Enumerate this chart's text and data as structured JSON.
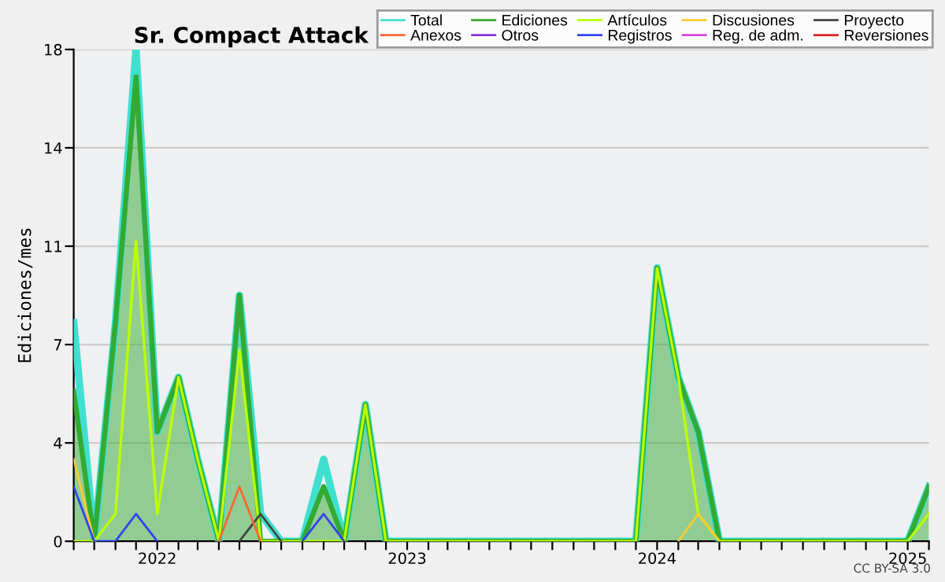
{
  "chart_data": {
    "type": "line",
    "title": "Sr. Compact Attack",
    "ylabel": "Ediciones/mes",
    "annotations": [
      "CC BY-SA 3.0"
    ],
    "x": [
      "2021-09",
      "2021-10",
      "2021-11",
      "2021-12",
      "2022-01",
      "2022-02",
      "2022-03",
      "2022-04",
      "2022-05",
      "2022-06",
      "2022-07",
      "2022-08",
      "2022-09",
      "2022-10",
      "2022-11",
      "2022-12",
      "2023-01",
      "2023-02",
      "2023-03",
      "2023-04",
      "2023-05",
      "2023-06",
      "2023-07",
      "2023-08",
      "2023-09",
      "2023-10",
      "2023-11",
      "2023-12",
      "2024-01",
      "2024-02",
      "2024-03",
      "2024-04",
      "2024-05",
      "2024-06",
      "2024-07",
      "2024-08",
      "2024-09",
      "2024-10",
      "2024-11",
      "2024-12",
      "2025-01",
      "2025-02"
    ],
    "xlim": [
      "2021-09",
      "2025-02"
    ],
    "xticks": [
      {
        "value": "2021-09",
        "label": null
      },
      {
        "value": "2021-10",
        "label": null
      },
      {
        "value": "2021-11",
        "label": null
      },
      {
        "value": "2021-12",
        "label": null
      },
      {
        "value": "2022-01",
        "label": "2022"
      },
      {
        "value": "2022-02",
        "label": null
      },
      {
        "value": "2022-03",
        "label": null
      },
      {
        "value": "2022-04",
        "label": null
      },
      {
        "value": "2022-05",
        "label": null
      },
      {
        "value": "2022-06",
        "label": null
      },
      {
        "value": "2022-07",
        "label": null
      },
      {
        "value": "2022-08",
        "label": null
      },
      {
        "value": "2022-09",
        "label": null
      },
      {
        "value": "2022-10",
        "label": null
      },
      {
        "value": "2022-11",
        "label": null
      },
      {
        "value": "2022-12",
        "label": null
      },
      {
        "value": "2023-01",
        "label": "2023"
      },
      {
        "value": "2023-02",
        "label": null
      },
      {
        "value": "2023-03",
        "label": null
      },
      {
        "value": "2023-04",
        "label": null
      },
      {
        "value": "2023-05",
        "label": null
      },
      {
        "value": "2023-06",
        "label": null
      },
      {
        "value": "2023-07",
        "label": null
      },
      {
        "value": "2023-08",
        "label": null
      },
      {
        "value": "2023-09",
        "label": null
      },
      {
        "value": "2023-10",
        "label": null
      },
      {
        "value": "2023-11",
        "label": null
      },
      {
        "value": "2023-12",
        "label": null
      },
      {
        "value": "2024-01",
        "label": "2024"
      },
      {
        "value": "2024-02",
        "label": null
      },
      {
        "value": "2024-03",
        "label": null
      },
      {
        "value": "2024-04",
        "label": null
      },
      {
        "value": "2024-05",
        "label": null
      },
      {
        "value": "2024-06",
        "label": null
      },
      {
        "value": "2024-07",
        "label": null
      },
      {
        "value": "2024-08",
        "label": null
      },
      {
        "value": "2024-09",
        "label": null
      },
      {
        "value": "2024-10",
        "label": null
      },
      {
        "value": "2024-11",
        "label": null
      },
      {
        "value": "2024-12",
        "label": null
      },
      {
        "value": "2025-01",
        "label": "2025"
      },
      {
        "value": "2025-02",
        "label": null
      }
    ],
    "ylim": [
      0,
      18
    ],
    "yticks": [
      0,
      {
        "value": 3.6,
        "label": "4"
      },
      {
        "value": 7.2,
        "label": "7"
      },
      {
        "value": 10.8,
        "label": "11"
      },
      {
        "value": 14.4,
        "label": "14"
      },
      18
    ],
    "grid": "y",
    "legend": "top right",
    "series": [
      {
        "name": "Total",
        "color": "#40e0d0",
        "values": [
          8,
          0,
          8,
          18,
          4,
          6,
          3,
          0,
          9,
          1,
          0,
          0,
          3,
          0,
          5,
          0,
          0,
          0,
          0,
          0,
          0,
          0,
          0,
          0,
          0,
          0,
          0,
          0,
          10,
          6,
          4,
          0,
          0,
          0,
          0,
          0,
          0,
          0,
          0,
          0,
          0,
          2
        ]
      },
      {
        "name": "Ediciones",
        "type": "area",
        "color": "#33aa33",
        "values": [
          5.5,
          0,
          8,
          17,
          4,
          6,
          3,
          0,
          9,
          0,
          0,
          0,
          2,
          0,
          5,
          0,
          0,
          0,
          0,
          0,
          0,
          0,
          0,
          0,
          0,
          0,
          0,
          0,
          10,
          6,
          4,
          0,
          0,
          0,
          0,
          0,
          0,
          0,
          0,
          0,
          0,
          2
        ]
      },
      {
        "name": "Artículos",
        "color": "#bbff00",
        "values": [
          0,
          0,
          1,
          11,
          1,
          6,
          3,
          0,
          7,
          0,
          0,
          0,
          0,
          0,
          5,
          0,
          0,
          0,
          0,
          0,
          0,
          0,
          0,
          0,
          0,
          0,
          0,
          0,
          10,
          6,
          1,
          0,
          0,
          0,
          0,
          0,
          0,
          0,
          0,
          0,
          0,
          1
        ]
      },
      {
        "name": "Discusiones",
        "color": "#ffcc33",
        "values": [
          3,
          0,
          null,
          null,
          null,
          null,
          null,
          null,
          null,
          null,
          null,
          null,
          null,
          null,
          null,
          null,
          null,
          null,
          null,
          null,
          null,
          null,
          null,
          null,
          null,
          null,
          null,
          null,
          null,
          0,
          1,
          0,
          null,
          null,
          null,
          null,
          null,
          null,
          null,
          null,
          null,
          null
        ]
      },
      {
        "name": "Proyecto",
        "color": "#444444",
        "values": [
          null,
          null,
          null,
          null,
          null,
          null,
          null,
          null,
          0,
          1,
          0,
          null,
          null,
          null,
          null,
          null,
          null,
          null,
          null,
          null,
          null,
          null,
          null,
          null,
          null,
          null,
          null,
          null,
          null,
          null,
          null,
          null,
          null,
          null,
          null,
          null,
          null,
          null,
          null,
          null,
          null,
          null
        ]
      },
      {
        "name": "Anexos",
        "color": "#ff6633",
        "values": [
          null,
          null,
          null,
          null,
          null,
          null,
          null,
          0,
          2,
          0,
          null,
          null,
          null,
          null,
          null,
          null,
          null,
          null,
          null,
          null,
          null,
          null,
          null,
          null,
          null,
          null,
          null,
          null,
          null,
          null,
          null,
          null,
          null,
          null,
          null,
          null,
          null,
          null,
          null,
          null,
          null,
          null
        ]
      },
      {
        "name": "Otros",
        "color": "#8833dd",
        "values": [
          null,
          null,
          null,
          null,
          null,
          null,
          null,
          null,
          null,
          null,
          null,
          null,
          null,
          null,
          null,
          null,
          null,
          null,
          null,
          null,
          null,
          null,
          null,
          null,
          null,
          null,
          null,
          null,
          null,
          null,
          null,
          null,
          null,
          null,
          null,
          null,
          null,
          null,
          null,
          null,
          null,
          null
        ]
      },
      {
        "name": "Registros",
        "color": "#3344ee",
        "values": [
          2,
          0,
          0,
          1,
          0,
          null,
          null,
          null,
          null,
          null,
          null,
          0,
          1,
          0,
          null,
          null,
          null,
          null,
          null,
          null,
          null,
          null,
          null,
          null,
          null,
          null,
          null,
          null,
          null,
          null,
          null,
          null,
          null,
          null,
          null,
          null,
          null,
          null,
          null,
          null,
          null,
          null
        ]
      },
      {
        "name": "Reg. de adm.",
        "color": "#dd44dd",
        "values": [
          null,
          null,
          null,
          null,
          null,
          null,
          null,
          null,
          null,
          null,
          null,
          null,
          null,
          null,
          null,
          null,
          null,
          null,
          null,
          null,
          null,
          null,
          null,
          null,
          null,
          null,
          null,
          null,
          null,
          null,
          null,
          null,
          null,
          null,
          null,
          null,
          null,
          null,
          null,
          null,
          null,
          null
        ]
      },
      {
        "name": "Reversiones",
        "color": "#dd2222",
        "values": [
          null,
          null,
          null,
          null,
          null,
          null,
          null,
          null,
          null,
          null,
          null,
          null,
          null,
          null,
          null,
          null,
          null,
          null,
          null,
          null,
          null,
          null,
          null,
          null,
          null,
          null,
          null,
          null,
          null,
          null,
          null,
          null,
          null,
          null,
          null,
          null,
          null,
          null,
          null,
          null,
          null,
          null
        ]
      }
    ]
  }
}
